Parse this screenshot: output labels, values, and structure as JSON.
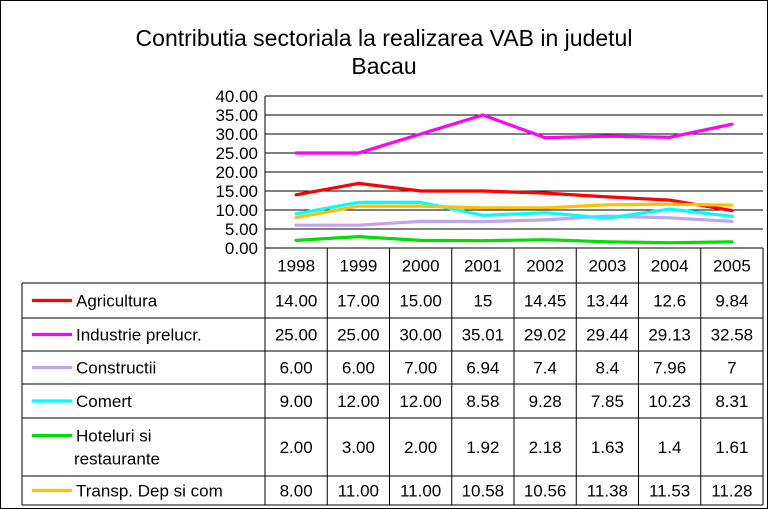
{
  "chart_data": {
    "type": "line",
    "title": "Contributia sectoriala la realizarea VAB in judetul Bacau",
    "title_lines": [
      "Contributia sectoriala la realizarea VAB in judetul",
      "Bacau"
    ],
    "categories": [
      "1998",
      "1999",
      "2000",
      "2001",
      "2002",
      "2003",
      "2004",
      "2005"
    ],
    "ylim": [
      0,
      40
    ],
    "yticks": [
      "0.00",
      "5.00",
      "10.00",
      "15.00",
      "20.00",
      "25.00",
      "30.00",
      "35.00",
      "40.00"
    ],
    "grid": true,
    "legend": "data-table",
    "series": [
      {
        "name": "Agricultura",
        "name_lines": [
          "Agricultura"
        ],
        "color": "#ff0000",
        "values": [
          14.0,
          17.0,
          15.0,
          15,
          14.45,
          13.44,
          12.6,
          9.84
        ],
        "labels": [
          "14.00",
          "17.00",
          "15.00",
          "15",
          "14.45",
          "13.44",
          "12.6",
          "9.84"
        ]
      },
      {
        "name": "Industrie prelucr.",
        "name_lines": [
          "Industrie prelucr."
        ],
        "color": "#ff00ff",
        "values": [
          25.0,
          25.0,
          30.0,
          35.01,
          29.02,
          29.44,
          29.13,
          32.58
        ],
        "labels": [
          "25.00",
          "25.00",
          "30.00",
          "35.01",
          "29.02",
          "29.44",
          "29.13",
          "32.58"
        ]
      },
      {
        "name": "Constructii",
        "name_lines": [
          "Constructii"
        ],
        "color": "#c5a3ea",
        "values": [
          6.0,
          6.0,
          7.0,
          6.94,
          7.4,
          8.4,
          7.96,
          7
        ],
        "labels": [
          "6.00",
          "6.00",
          "7.00",
          "6.94",
          "7.4",
          "8.4",
          "7.96",
          "7"
        ]
      },
      {
        "name": "Comert",
        "name_lines": [
          "Comert"
        ],
        "color": "#00ffff",
        "values": [
          9.0,
          12.0,
          12.0,
          8.58,
          9.28,
          7.85,
          10.23,
          8.31
        ],
        "labels": [
          "9.00",
          "12.00",
          "12.00",
          "8.58",
          "9.28",
          "7.85",
          "10.23",
          "8.31"
        ]
      },
      {
        "name": "Hoteluri si restaurante",
        "name_lines": [
          " Hoteluri si",
          "restaurante"
        ],
        "color": "#00dd00",
        "values": [
          2.0,
          3.0,
          2.0,
          1.92,
          2.18,
          1.63,
          1.4,
          1.61
        ],
        "labels": [
          "2.00",
          "3.00",
          "2.00",
          "1.92",
          "2.18",
          "1.63",
          "1.4",
          "1.61"
        ]
      },
      {
        "name": "Transp. Dep si com",
        "name_lines": [
          "Transp. Dep si com"
        ],
        "color": "#ffc000",
        "values": [
          8.0,
          11.0,
          11.0,
          10.58,
          10.56,
          11.38,
          11.53,
          11.28
        ],
        "labels": [
          "8.00",
          "11.00",
          "11.00",
          "10.58",
          "10.56",
          "11.38",
          "11.53",
          "11.28"
        ]
      }
    ]
  }
}
